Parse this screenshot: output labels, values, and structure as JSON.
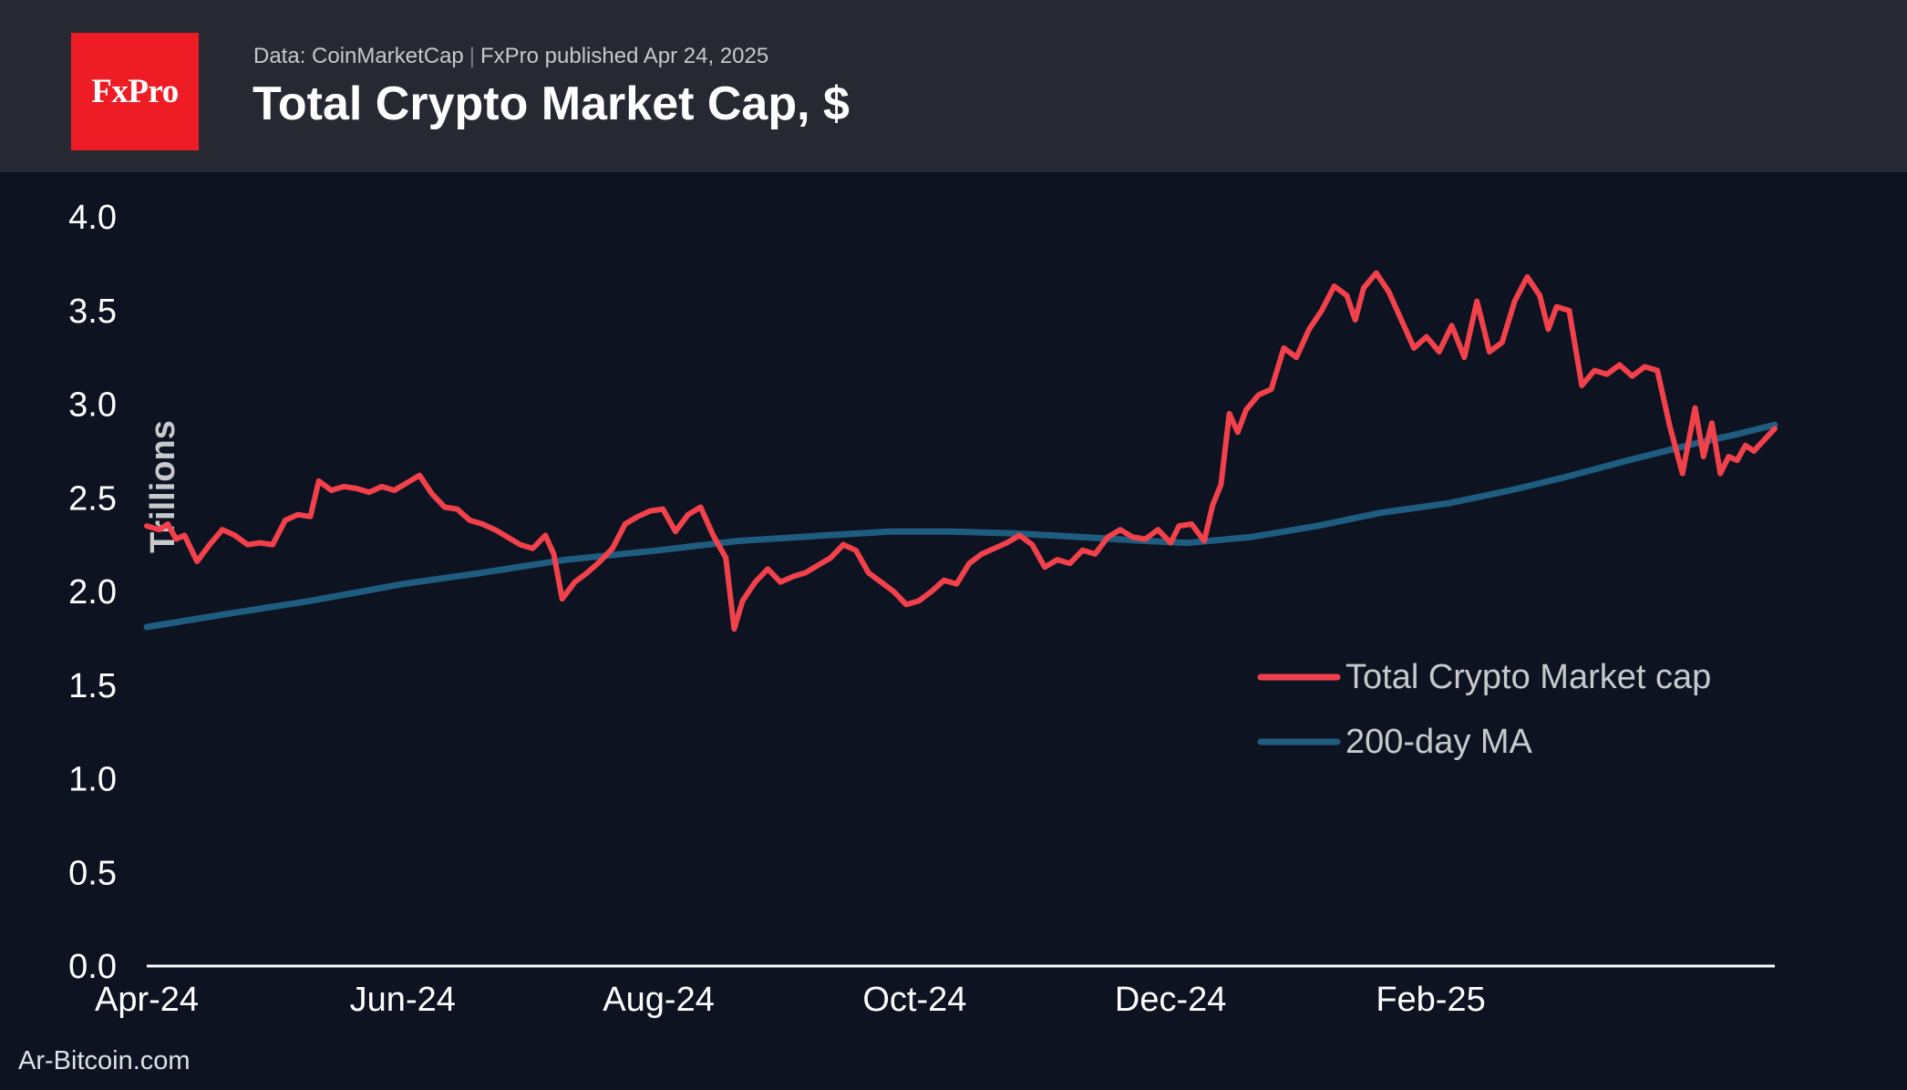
{
  "header": {
    "logo_text": "FxPro",
    "source_text": "Data: CoinMarketCap",
    "separator": "|",
    "published_text": "FxPro published Apr 24, 2025",
    "title": "Total Crypto Market Cap, $"
  },
  "watermark": "Ar-Bitcoin.com",
  "colors": {
    "background": "#0d1321",
    "header": "#262932",
    "logo": "#ee1c25",
    "market_cap_line": "#f2414b",
    "ma_line": "#1f5d80",
    "axis": "#ffffff"
  },
  "chart_data": {
    "type": "line",
    "title": "Total Crypto Market Cap, $",
    "ylabel": "Trillions",
    "xlabel": "",
    "ylim": [
      0,
      4.0
    ],
    "yticks": [
      "0.0",
      "0.5",
      "1.0",
      "1.5",
      "2.0",
      "2.5",
      "3.0",
      "3.5",
      "4.0"
    ],
    "xlim": [
      "2024-04-01",
      "2025-04-24"
    ],
    "xticks": [
      {
        "date": "2024-04-01",
        "label": "Apr-24"
      },
      {
        "date": "2024-06-01",
        "label": "Jun-24"
      },
      {
        "date": "2024-08-01",
        "label": "Aug-24"
      },
      {
        "date": "2024-10-01",
        "label": "Oct-24"
      },
      {
        "date": "2024-12-01",
        "label": "Dec-24"
      },
      {
        "date": "2025-02-01",
        "label": "Feb-25"
      }
    ],
    "grid": false,
    "legend_position": "right-middle",
    "series": [
      {
        "name": "Total Crypto Market cap",
        "color": "#f2414b",
        "points": [
          [
            "2024-04-01",
            2.35
          ],
          [
            "2024-04-04",
            2.33
          ],
          [
            "2024-04-06",
            2.36
          ],
          [
            "2024-04-08",
            2.28
          ],
          [
            "2024-04-10",
            2.3
          ],
          [
            "2024-04-13",
            2.16
          ],
          [
            "2024-04-16",
            2.25
          ],
          [
            "2024-04-19",
            2.33
          ],
          [
            "2024-04-22",
            2.3
          ],
          [
            "2024-04-25",
            2.25
          ],
          [
            "2024-04-28",
            2.26
          ],
          [
            "2024-05-01",
            2.25
          ],
          [
            "2024-05-04",
            2.38
          ],
          [
            "2024-05-07",
            2.41
          ],
          [
            "2024-05-10",
            2.4
          ],
          [
            "2024-05-12",
            2.59
          ],
          [
            "2024-05-15",
            2.54
          ],
          [
            "2024-05-18",
            2.56
          ],
          [
            "2024-05-21",
            2.55
          ],
          [
            "2024-05-24",
            2.53
          ],
          [
            "2024-05-27",
            2.56
          ],
          [
            "2024-05-30",
            2.54
          ],
          [
            "2024-06-02",
            2.58
          ],
          [
            "2024-06-05",
            2.62
          ],
          [
            "2024-06-08",
            2.52
          ],
          [
            "2024-06-11",
            2.45
          ],
          [
            "2024-06-14",
            2.44
          ],
          [
            "2024-06-17",
            2.38
          ],
          [
            "2024-06-20",
            2.36
          ],
          [
            "2024-06-23",
            2.33
          ],
          [
            "2024-06-26",
            2.29
          ],
          [
            "2024-06-29",
            2.25
          ],
          [
            "2024-07-02",
            2.23
          ],
          [
            "2024-07-05",
            2.3
          ],
          [
            "2024-07-07",
            2.2
          ],
          [
            "2024-07-09",
            1.96
          ],
          [
            "2024-07-12",
            2.05
          ],
          [
            "2024-07-15",
            2.1
          ],
          [
            "2024-07-18",
            2.16
          ],
          [
            "2024-07-21",
            2.23
          ],
          [
            "2024-07-24",
            2.36
          ],
          [
            "2024-07-27",
            2.4
          ],
          [
            "2024-07-30",
            2.43
          ],
          [
            "2024-08-02",
            2.44
          ],
          [
            "2024-08-05",
            2.32
          ],
          [
            "2024-08-08",
            2.41
          ],
          [
            "2024-08-11",
            2.45
          ],
          [
            "2024-08-14",
            2.3
          ],
          [
            "2024-08-17",
            2.18
          ],
          [
            "2024-08-19",
            1.8
          ],
          [
            "2024-08-21",
            1.95
          ],
          [
            "2024-08-24",
            2.05
          ],
          [
            "2024-08-27",
            2.12
          ],
          [
            "2024-08-30",
            2.05
          ],
          [
            "2024-09-02",
            2.08
          ],
          [
            "2024-09-05",
            2.1
          ],
          [
            "2024-09-08",
            2.14
          ],
          [
            "2024-09-11",
            2.18
          ],
          [
            "2024-09-14",
            2.25
          ],
          [
            "2024-09-17",
            2.22
          ],
          [
            "2024-09-20",
            2.1
          ],
          [
            "2024-09-23",
            2.05
          ],
          [
            "2024-09-26",
            2.0
          ],
          [
            "2024-09-29",
            1.93
          ],
          [
            "2024-10-02",
            1.95
          ],
          [
            "2024-10-05",
            2.0
          ],
          [
            "2024-10-08",
            2.06
          ],
          [
            "2024-10-11",
            2.04
          ],
          [
            "2024-10-14",
            2.15
          ],
          [
            "2024-10-17",
            2.2
          ],
          [
            "2024-10-20",
            2.23
          ],
          [
            "2024-10-23",
            2.26
          ],
          [
            "2024-10-26",
            2.3
          ],
          [
            "2024-10-29",
            2.25
          ],
          [
            "2024-11-01",
            2.13
          ],
          [
            "2024-11-04",
            2.17
          ],
          [
            "2024-11-07",
            2.15
          ],
          [
            "2024-11-10",
            2.22
          ],
          [
            "2024-11-13",
            2.2
          ],
          [
            "2024-11-16",
            2.29
          ],
          [
            "2024-11-19",
            2.33
          ],
          [
            "2024-11-22",
            2.29
          ],
          [
            "2024-11-25",
            2.28
          ],
          [
            "2024-11-28",
            2.33
          ],
          [
            "2024-12-01",
            2.26
          ],
          [
            "2024-12-03",
            2.35
          ],
          [
            "2024-12-06",
            2.36
          ],
          [
            "2024-12-09",
            2.27
          ],
          [
            "2024-12-11",
            2.46
          ],
          [
            "2024-12-13",
            2.57
          ],
          [
            "2024-12-15",
            2.95
          ],
          [
            "2024-12-17",
            2.85
          ],
          [
            "2024-12-19",
            2.97
          ],
          [
            "2024-12-22",
            3.05
          ],
          [
            "2024-12-25",
            3.08
          ],
          [
            "2024-12-28",
            3.3
          ],
          [
            "2024-12-31",
            3.25
          ],
          [
            "2025-01-03",
            3.4
          ],
          [
            "2025-01-06",
            3.5
          ],
          [
            "2025-01-09",
            3.63
          ],
          [
            "2025-01-12",
            3.58
          ],
          [
            "2025-01-14",
            3.45
          ],
          [
            "2025-01-16",
            3.62
          ],
          [
            "2025-01-19",
            3.7
          ],
          [
            "2025-01-22",
            3.6
          ],
          [
            "2025-01-25",
            3.45
          ],
          [
            "2025-01-28",
            3.3
          ],
          [
            "2025-01-31",
            3.36
          ],
          [
            "2025-02-03",
            3.28
          ],
          [
            "2025-02-06",
            3.42
          ],
          [
            "2025-02-09",
            3.25
          ],
          [
            "2025-02-12",
            3.55
          ],
          [
            "2025-02-15",
            3.28
          ],
          [
            "2025-02-18",
            3.33
          ],
          [
            "2025-02-21",
            3.55
          ],
          [
            "2025-02-24",
            3.68
          ],
          [
            "2025-02-27",
            3.58
          ],
          [
            "2025-03-01",
            3.4
          ],
          [
            "2025-03-03",
            3.52
          ],
          [
            "2025-03-06",
            3.5
          ],
          [
            "2025-03-09",
            3.1
          ],
          [
            "2025-03-12",
            3.18
          ],
          [
            "2025-03-15",
            3.16
          ],
          [
            "2025-03-18",
            3.21
          ],
          [
            "2025-03-21",
            3.15
          ],
          [
            "2025-03-24",
            3.2
          ],
          [
            "2025-03-27",
            3.18
          ],
          [
            "2025-03-30",
            2.88
          ],
          [
            "2025-04-02",
            2.63
          ],
          [
            "2025-04-05",
            2.98
          ],
          [
            "2025-04-07",
            2.72
          ],
          [
            "2025-04-09",
            2.9
          ],
          [
            "2025-04-11",
            2.63
          ],
          [
            "2025-04-13",
            2.72
          ],
          [
            "2025-04-15",
            2.7
          ],
          [
            "2025-04-17",
            2.78
          ],
          [
            "2025-04-19",
            2.75
          ],
          [
            "2025-04-24",
            2.87
          ]
        ]
      },
      {
        "name": "200-day MA",
        "color": "#1f5d80",
        "points": [
          [
            "2024-04-01",
            1.81
          ],
          [
            "2024-04-20",
            1.88
          ],
          [
            "2024-05-10",
            1.95
          ],
          [
            "2024-06-01",
            2.04
          ],
          [
            "2024-06-20",
            2.1
          ],
          [
            "2024-07-10",
            2.17
          ],
          [
            "2024-08-01",
            2.22
          ],
          [
            "2024-08-20",
            2.27
          ],
          [
            "2024-09-10",
            2.3
          ],
          [
            "2024-09-25",
            2.32
          ],
          [
            "2024-10-10",
            2.32
          ],
          [
            "2024-10-25",
            2.31
          ],
          [
            "2024-11-10",
            2.29
          ],
          [
            "2024-11-25",
            2.27
          ],
          [
            "2024-12-05",
            2.26
          ],
          [
            "2024-12-20",
            2.29
          ],
          [
            "2025-01-05",
            2.35
          ],
          [
            "2025-01-20",
            2.42
          ],
          [
            "2025-02-05",
            2.47
          ],
          [
            "2025-02-20",
            2.54
          ],
          [
            "2025-03-05",
            2.61
          ],
          [
            "2025-03-20",
            2.7
          ],
          [
            "2025-04-05",
            2.79
          ],
          [
            "2025-04-15",
            2.84
          ],
          [
            "2025-04-24",
            2.89
          ]
        ]
      }
    ]
  }
}
